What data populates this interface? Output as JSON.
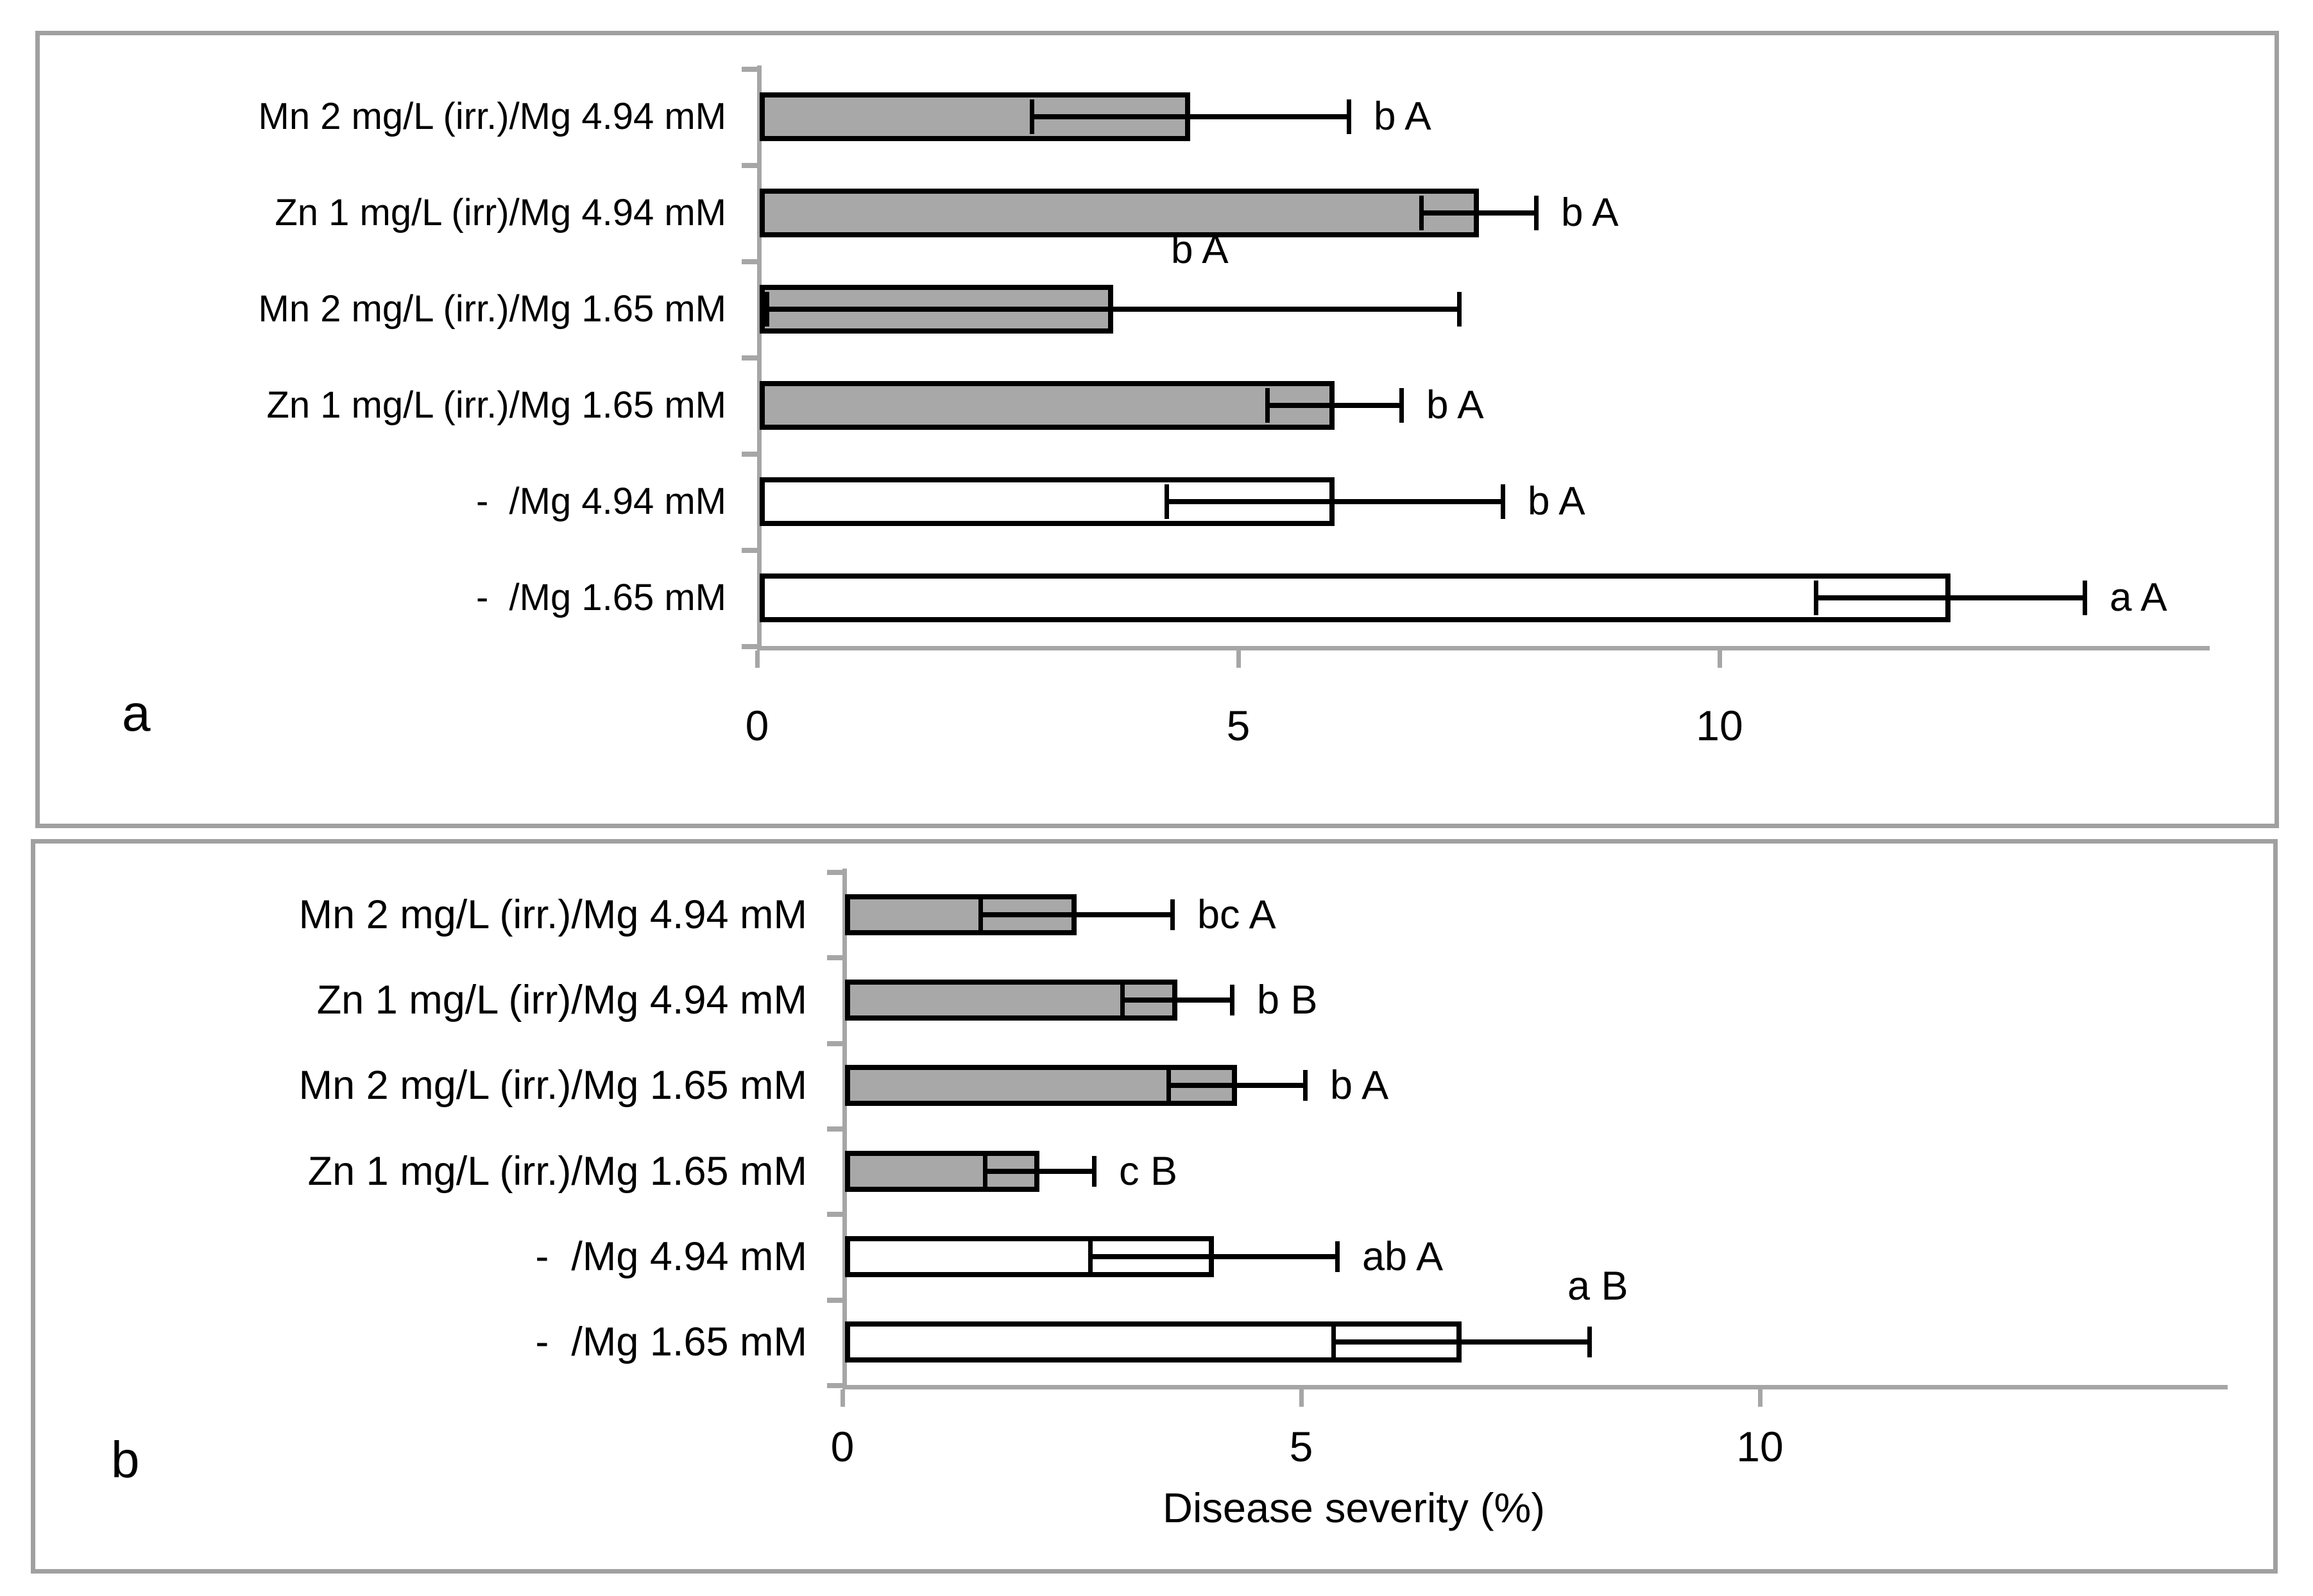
{
  "colors": {
    "background": "#ffffff",
    "bar_fill_gray": "#a8a8a8",
    "bar_fill_white": "#ffffff",
    "bar_border": "#000000",
    "error_bar": "#000000",
    "axis": "#a6a6a6",
    "panel_border": "#a0a0a0",
    "text": "#000000"
  },
  "chart_data": [
    {
      "type": "bar",
      "orientation": "horizontal",
      "panel_letter": "a",
      "title": "",
      "xlabel": "",
      "ylabel": "",
      "xlim": [
        0,
        15
      ],
      "xticks": [
        0,
        5,
        10
      ],
      "grid": false,
      "legend": false,
      "bars": [
        {
          "category": "Mn 2 mg/L (irr.)/Mg 4.94 mM",
          "value": 4.5,
          "error": 1.65,
          "fill": "gray",
          "sig": "b A",
          "sig_pos": "right"
        },
        {
          "category": "Zn 1 mg/L (irr)/Mg 4.94 mM",
          "value": 7.5,
          "error": 0.6,
          "fill": "gray",
          "sig": "b A",
          "sig_pos": "right"
        },
        {
          "category": "Mn 2 mg/L (irr.)/Mg 1.65 mM",
          "value": 3.7,
          "error": 3.6,
          "fill": "gray",
          "sig": "b A",
          "sig_pos": "above",
          "sig_x": 4.3
        },
        {
          "category": "Zn 1 mg/L (irr.)/Mg 1.65 mM",
          "value": 6.0,
          "error": 0.7,
          "fill": "gray",
          "sig": "b A",
          "sig_pos": "right"
        },
        {
          "category": "-  /Mg 4.94 mM",
          "value": 6.0,
          "error": 1.75,
          "fill": "white",
          "sig": "b A",
          "sig_pos": "right"
        },
        {
          "category": "-  /Mg 1.65 mM",
          "value": 12.4,
          "error": 1.4,
          "fill": "white",
          "sig": "a A",
          "sig_pos": "right"
        }
      ]
    },
    {
      "type": "bar",
      "orientation": "horizontal",
      "panel_letter": "b",
      "title": "",
      "xlabel": "Disease severity (%)",
      "ylabel": "",
      "xlim": [
        0,
        15
      ],
      "xticks": [
        0,
        5,
        10
      ],
      "grid": false,
      "legend": false,
      "bars": [
        {
          "category": "Mn 2 mg/L (irr.)/Mg 4.94 mM",
          "value": 2.55,
          "error": 1.05,
          "fill": "gray",
          "sig": "bc A",
          "sig_pos": "right"
        },
        {
          "category": "Zn 1 mg/L (irr)/Mg 4.94 mM",
          "value": 3.65,
          "error": 0.6,
          "fill": "gray",
          "sig": "b B",
          "sig_pos": "right"
        },
        {
          "category": "Mn 2 mg/L (irr.)/Mg 1.65 mM",
          "value": 4.3,
          "error": 0.75,
          "fill": "gray",
          "sig": "b A",
          "sig_pos": "right"
        },
        {
          "category": "Zn 1 mg/L (irr.)/Mg 1.65 mM",
          "value": 2.15,
          "error": 0.6,
          "fill": "gray",
          "sig": "c B",
          "sig_pos": "right"
        },
        {
          "category": "-  /Mg 4.94 mM",
          "value": 4.05,
          "error": 1.35,
          "fill": "white",
          "sig": "ab A",
          "sig_pos": "right"
        },
        {
          "category": "-  /Mg 1.65 mM",
          "value": 6.75,
          "error": 1.4,
          "fill": "white",
          "sig": "a B",
          "sig_pos": "above",
          "sig_x": 7.9
        }
      ]
    }
  ]
}
